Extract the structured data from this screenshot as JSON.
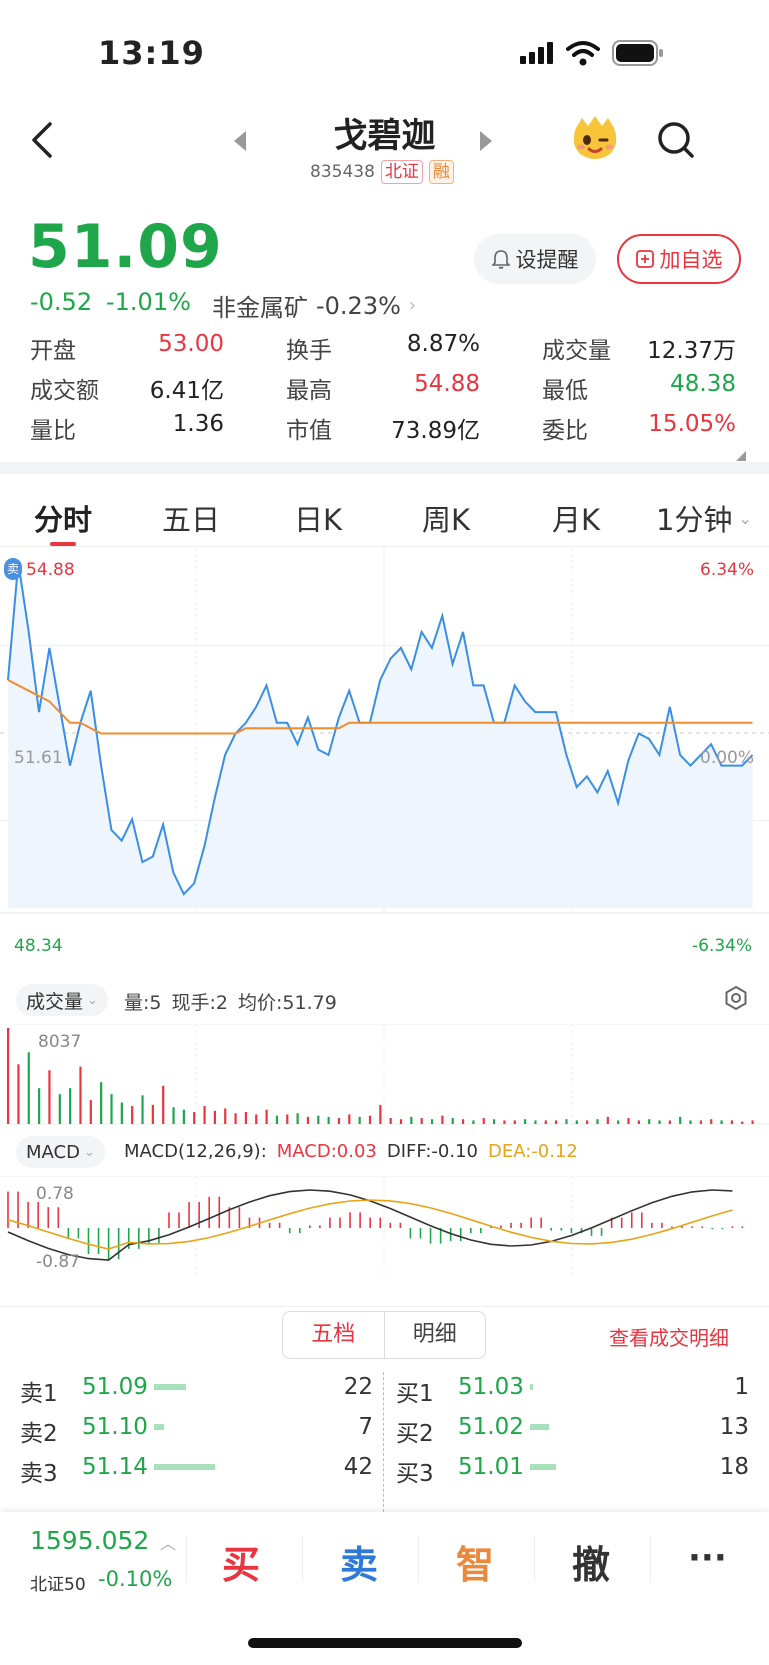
{
  "status": {
    "time": "13:19"
  },
  "header": {
    "title": "戈碧迦",
    "code": "835438",
    "tag_exchange": "北证",
    "tag_margin": "融"
  },
  "quote": {
    "price": "51.09",
    "change": "-0.52",
    "change_pct": "-1.01%",
    "sector": "非金属矿",
    "sector_pct": "-0.23%",
    "remind_label": "设提醒",
    "add_label": "加自选",
    "stats": [
      {
        "label": "开盘",
        "value": "53.00",
        "color": "red"
      },
      {
        "label": "换手",
        "value": "8.87%",
        "color": "dark"
      },
      {
        "label": "成交量",
        "value": "12.37万",
        "color": "dark"
      },
      {
        "label": "成交额",
        "value": "6.41亿",
        "color": "dark"
      },
      {
        "label": "最高",
        "value": "54.88",
        "color": "red"
      },
      {
        "label": "最低",
        "value": "48.38",
        "color": "green"
      },
      {
        "label": "量比",
        "value": "1.36",
        "color": "dark"
      },
      {
        "label": "市值",
        "value": "73.89亿",
        "color": "dark"
      },
      {
        "label": "委比",
        "value": "15.05%",
        "color": "red"
      }
    ]
  },
  "tabs": [
    "分时",
    "五日",
    "日K",
    "周K",
    "月K",
    "1分钟"
  ],
  "chart_labels": {
    "high": "54.88",
    "low": "48.34",
    "mid": "51.61",
    "pct_high": "6.34%",
    "pct_mid": "0.00%",
    "pct_low": "-6.34%",
    "sell_badge": "卖"
  },
  "volume_panel": {
    "selector": "成交量",
    "info_vol": "量:5",
    "info_hand": "现手:2",
    "info_avg": "均价:51.79",
    "max_label": "8037"
  },
  "macd_panel": {
    "selector": "MACD",
    "params": "MACD(12,26,9):",
    "macd": "MACD:0.03",
    "diff": "DIFF:-0.10",
    "dea": "DEA:-0.12",
    "max_label": "0.78",
    "min_label": "-0.87"
  },
  "order_book": {
    "tab_five": "五档",
    "tab_detail": "明细",
    "view_detail": "查看成交明细",
    "sells": [
      {
        "label": "卖1",
        "price": "51.09",
        "vol": "22",
        "bar": 22
      },
      {
        "label": "卖2",
        "price": "51.10",
        "vol": "7",
        "bar": 7
      },
      {
        "label": "卖3",
        "price": "51.14",
        "vol": "42",
        "bar": 42
      }
    ],
    "buys": [
      {
        "label": "买1",
        "price": "51.03",
        "vol": "1",
        "bar": 1
      },
      {
        "label": "买2",
        "price": "51.02",
        "vol": "13",
        "bar": 13
      },
      {
        "label": "买3",
        "price": "51.01",
        "vol": "18",
        "bar": 18
      }
    ]
  },
  "bottom": {
    "index_value": "1595.052",
    "index_name": "北证50",
    "index_pct": "-0.10%",
    "buy": "买",
    "sell": "卖",
    "smart": "智",
    "cancel": "撤",
    "more": "···"
  },
  "chart_data": {
    "type": "line",
    "y_range": [
      48.34,
      54.88
    ],
    "baseline": 51.61,
    "series": [
      {
        "values": [
          52.6,
          54.8,
          53.5,
          52.0,
          53.2,
          52.1,
          51.0,
          51.8,
          52.4,
          51.0,
          49.8,
          49.6,
          50.0,
          49.2,
          49.3,
          49.9,
          49.0,
          48.6,
          48.8,
          49.5,
          50.4,
          51.2,
          51.6,
          51.8,
          52.1,
          52.5,
          51.8,
          51.8,
          51.4,
          51.9,
          51.3,
          51.2,
          51.9,
          52.4,
          51.8,
          51.8,
          52.6,
          53.0,
          53.2,
          52.8,
          53.5,
          53.2,
          53.8,
          52.9,
          53.5,
          52.5,
          52.5,
          51.8,
          51.8,
          52.5,
          52.2,
          52.0,
          52.0,
          52.0,
          51.2,
          50.6,
          50.8,
          50.5,
          50.9,
          50.3,
          51.1,
          51.6,
          51.5,
          51.2,
          52.1,
          51.2,
          51.0,
          51.2,
          51.4,
          51.0,
          51.0,
          51.0,
          51.2
        ]
      },
      {
        "values": [
          52.6,
          52.5,
          52.4,
          52.3,
          52.2,
          52.0,
          51.8,
          51.8,
          51.7,
          51.6,
          51.6,
          51.6,
          51.6,
          51.6,
          51.6,
          51.6,
          51.6,
          51.6,
          51.6,
          51.6,
          51.6,
          51.6,
          51.6,
          51.7,
          51.7,
          51.7,
          51.7,
          51.7,
          51.7,
          51.7,
          51.7,
          51.7,
          51.7,
          51.8,
          51.8,
          51.8,
          51.8,
          51.8,
          51.8,
          51.8,
          51.8,
          51.8,
          51.8,
          51.8,
          51.8,
          51.8,
          51.8,
          51.8,
          51.8,
          51.8,
          51.8,
          51.8,
          51.8,
          51.8,
          51.8,
          51.8,
          51.8,
          51.8,
          51.8,
          51.8,
          51.8,
          51.8,
          51.8,
          51.8,
          51.8,
          51.8,
          51.8,
          51.8,
          51.8,
          51.8,
          51.8,
          51.8,
          51.8
        ]
      }
    ],
    "volume": [
      8037,
      5000,
      6000,
      3000,
      4500,
      2500,
      3000,
      4800,
      2000,
      3500,
      2500,
      1800,
      1500,
      2400,
      1600,
      3200,
      1400,
      1200,
      1000,
      1500,
      1100,
      1300,
      900,
      1000,
      800,
      1200,
      700,
      800,
      900,
      600,
      700,
      600,
      500,
      800,
      600,
      700,
      1600,
      500,
      400,
      600,
      500,
      400,
      700,
      500,
      400,
      300,
      500,
      400,
      300,
      300,
      400,
      300,
      300,
      300,
      400,
      300,
      300,
      400,
      600,
      300,
      500,
      300,
      400,
      300,
      300,
      600,
      300,
      300,
      400,
      300,
      300,
      200,
      300
    ],
    "macd_hist": [
      0.7,
      0.5,
      0.4,
      -0.2,
      -0.5,
      -0.6,
      -0.4,
      -0.3,
      0.3,
      0.5,
      0.6,
      0.4,
      0.2,
      0.1,
      -0.1,
      0.05,
      0.2,
      0.3,
      0.2,
      0.1,
      -0.2,
      -0.3,
      -0.25,
      -0.1,
      0.05,
      0.1,
      0.2,
      -0.05,
      -0.1,
      -0.15,
      0.2,
      0.3,
      0.1,
      0.03,
      0.03,
      -0.02,
      0.03
    ]
  }
}
